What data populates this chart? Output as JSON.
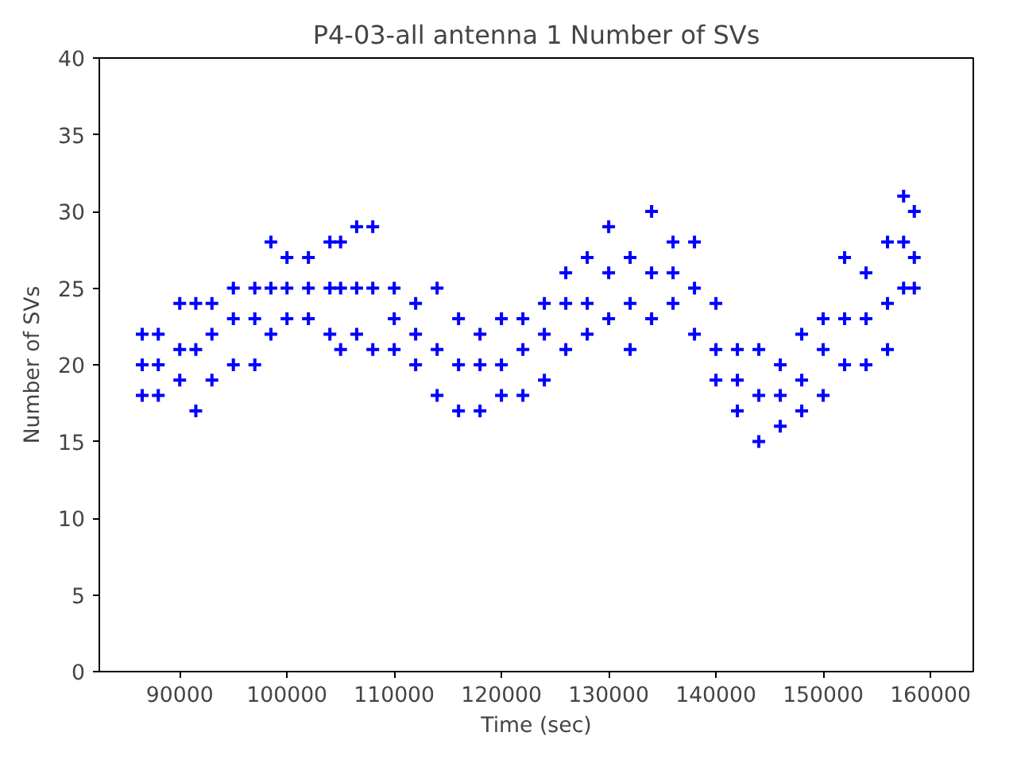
{
  "chart_data": {
    "type": "scatter",
    "title": "P4-03-all antenna 1 Number of SVs",
    "xlabel": "Time (sec)",
    "ylabel": "Number of SVs",
    "marker": "cross",
    "grid": false,
    "color": "#0000ff",
    "x": [
      86500,
      86500,
      86500,
      88000,
      88000,
      88000,
      90000,
      90000,
      90000,
      91500,
      91500,
      91500,
      93000,
      93000,
      93000,
      95000,
      95000,
      95000,
      97000,
      97000,
      97000,
      98500,
      98500,
      98500,
      100000,
      100000,
      100000,
      102000,
      102000,
      102000,
      104000,
      104000,
      104000,
      105000,
      105000,
      105000,
      106500,
      106500,
      106500,
      108000,
      108000,
      108000,
      110000,
      110000,
      110000,
      112000,
      112000,
      112000,
      114000,
      114000,
      114000,
      116000,
      116000,
      116000,
      118000,
      118000,
      118000,
      120000,
      120000,
      120000,
      122000,
      122000,
      122000,
      124000,
      124000,
      124000,
      126000,
      126000,
      126000,
      128000,
      128000,
      128000,
      130000,
      130000,
      130000,
      132000,
      132000,
      132000,
      134000,
      134000,
      134000,
      136000,
      136000,
      136000,
      138000,
      138000,
      138000,
      140000,
      140000,
      140000,
      142000,
      142000,
      142000,
      144000,
      144000,
      144000,
      146000,
      146000,
      146000,
      148000,
      148000,
      148000,
      150000,
      150000,
      150000,
      152000,
      152000,
      152000,
      154000,
      154000,
      154000,
      156000,
      156000,
      156000,
      157500,
      157500,
      157500,
      158500,
      158500,
      158500
    ],
    "values": [
      18,
      20,
      22,
      18,
      20,
      22,
      19,
      21,
      24,
      17,
      21,
      24,
      19,
      22,
      24,
      20,
      23,
      25,
      20,
      23,
      25,
      22,
      25,
      28,
      23,
      25,
      27,
      23,
      25,
      27,
      22,
      25,
      28,
      21,
      25,
      28,
      22,
      25,
      29,
      21,
      25,
      29,
      21,
      23,
      25,
      20,
      22,
      24,
      18,
      21,
      25,
      17,
      20,
      23,
      17,
      20,
      22,
      18,
      20,
      23,
      18,
      21,
      23,
      19,
      22,
      24,
      21,
      24,
      26,
      22,
      24,
      27,
      23,
      26,
      29,
      21,
      24,
      27,
      23,
      26,
      30,
      24,
      26,
      28,
      22,
      25,
      28,
      19,
      21,
      24,
      17,
      19,
      21,
      15,
      18,
      21,
      16,
      18,
      20,
      17,
      19,
      22,
      18,
      21,
      23,
      20,
      23,
      27,
      20,
      23,
      26,
      21,
      24,
      28,
      25,
      28,
      31,
      25,
      27,
      30
    ],
    "xlim": [
      82500,
      164000
    ],
    "ylim": [
      0,
      40
    ],
    "xticks": [
      90000,
      100000,
      110000,
      120000,
      130000,
      140000,
      150000,
      160000
    ],
    "yticks": [
      0,
      5,
      10,
      15,
      20,
      25,
      30,
      35,
      40
    ]
  }
}
